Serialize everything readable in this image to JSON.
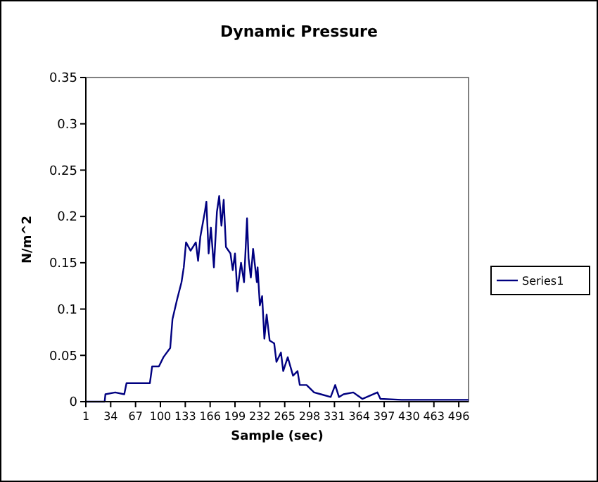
{
  "chart_data": {
    "type": "line",
    "title": "Dynamic Pressure",
    "xlabel": "Sample (sec)",
    "ylabel": "N/m^2",
    "legend": "right",
    "grid": false,
    "marker": "none",
    "line_style": "solid",
    "xlim": [
      1,
      509
    ],
    "xticks": [
      1,
      34,
      67,
      100,
      133,
      166,
      199,
      232,
      265,
      298,
      331,
      364,
      397,
      430,
      463,
      496
    ],
    "ylim": [
      0,
      0.35
    ],
    "yticks": [
      0,
      0.05,
      0.1,
      0.15,
      0.2,
      0.25,
      0.3,
      0.35
    ],
    "series": [
      {
        "name": "Series1",
        "color": "#000080",
        "x": [
          1,
          26,
          27,
          40,
          52,
          55,
          70,
          86,
          89,
          98,
          104,
          113,
          116,
          122,
          128,
          131,
          134,
          140,
          147,
          150,
          153,
          159,
          161,
          164,
          167,
          171,
          175,
          178,
          181,
          184,
          187,
          193,
          196,
          199,
          202,
          207,
          211,
          215,
          217,
          220,
          223,
          228,
          229,
          232,
          235,
          238,
          241,
          245,
          251,
          254,
          260,
          263,
          269,
          276,
          282,
          285,
          294,
          304,
          313,
          326,
          332,
          337,
          343,
          356,
          368,
          388,
          392,
          420,
          460,
          509
        ],
        "values": [
          0,
          0,
          0.008,
          0.01,
          0.008,
          0.02,
          0.02,
          0.02,
          0.038,
          0.038,
          0.048,
          0.058,
          0.089,
          0.11,
          0.129,
          0.145,
          0.172,
          0.163,
          0.172,
          0.152,
          0.178,
          0.205,
          0.216,
          0.16,
          0.188,
          0.145,
          0.205,
          0.222,
          0.19,
          0.218,
          0.167,
          0.16,
          0.142,
          0.16,
          0.119,
          0.15,
          0.129,
          0.198,
          0.155,
          0.134,
          0.165,
          0.129,
          0.145,
          0.104,
          0.114,
          0.068,
          0.094,
          0.066,
          0.063,
          0.043,
          0.053,
          0.033,
          0.048,
          0.028,
          0.033,
          0.018,
          0.018,
          0.01,
          0.008,
          0.005,
          0.018,
          0.005,
          0.008,
          0.01,
          0.003,
          0.01,
          0.003,
          0.002,
          0.002,
          0.002
        ]
      }
    ]
  }
}
